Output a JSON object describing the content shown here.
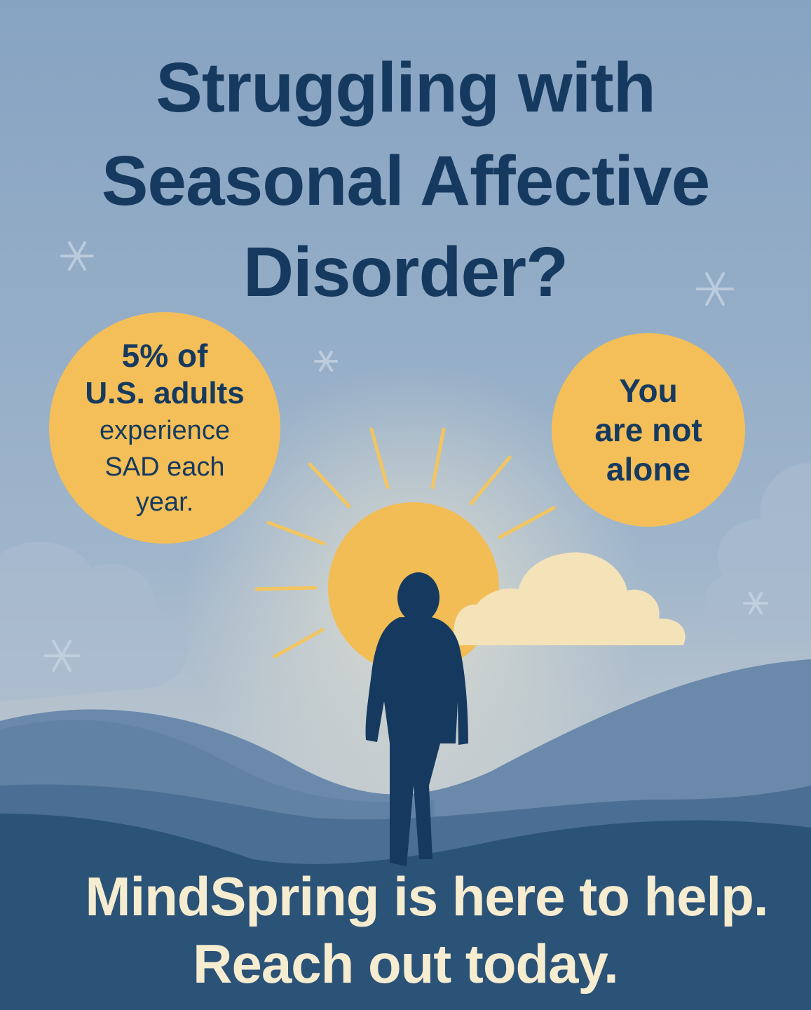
{
  "headline": {
    "lines": [
      "Struggling with",
      "Seasonal Affective",
      "Disorder?"
    ]
  },
  "stat_bubble": {
    "lines": [
      "5% of",
      "U.S. adults",
      "experience",
      "SAD each",
      "year."
    ]
  },
  "support_bubble": {
    "lines": [
      "You",
      "are not",
      "alone"
    ]
  },
  "call_to_action": {
    "lines": [
      "MindSpring is here to help.",
      "Reach out today."
    ]
  },
  "colors": {
    "headline": "#163a5f",
    "sun": "#f2bd55",
    "bubble": "#f4bf58",
    "cloud": "#f4e3b8",
    "silhouette": "#163a5f",
    "cta_text": "#f6ecd0"
  },
  "icons": [
    "snowflake-icon",
    "sun-icon",
    "cloud-icon",
    "person-silhouette-icon"
  ]
}
